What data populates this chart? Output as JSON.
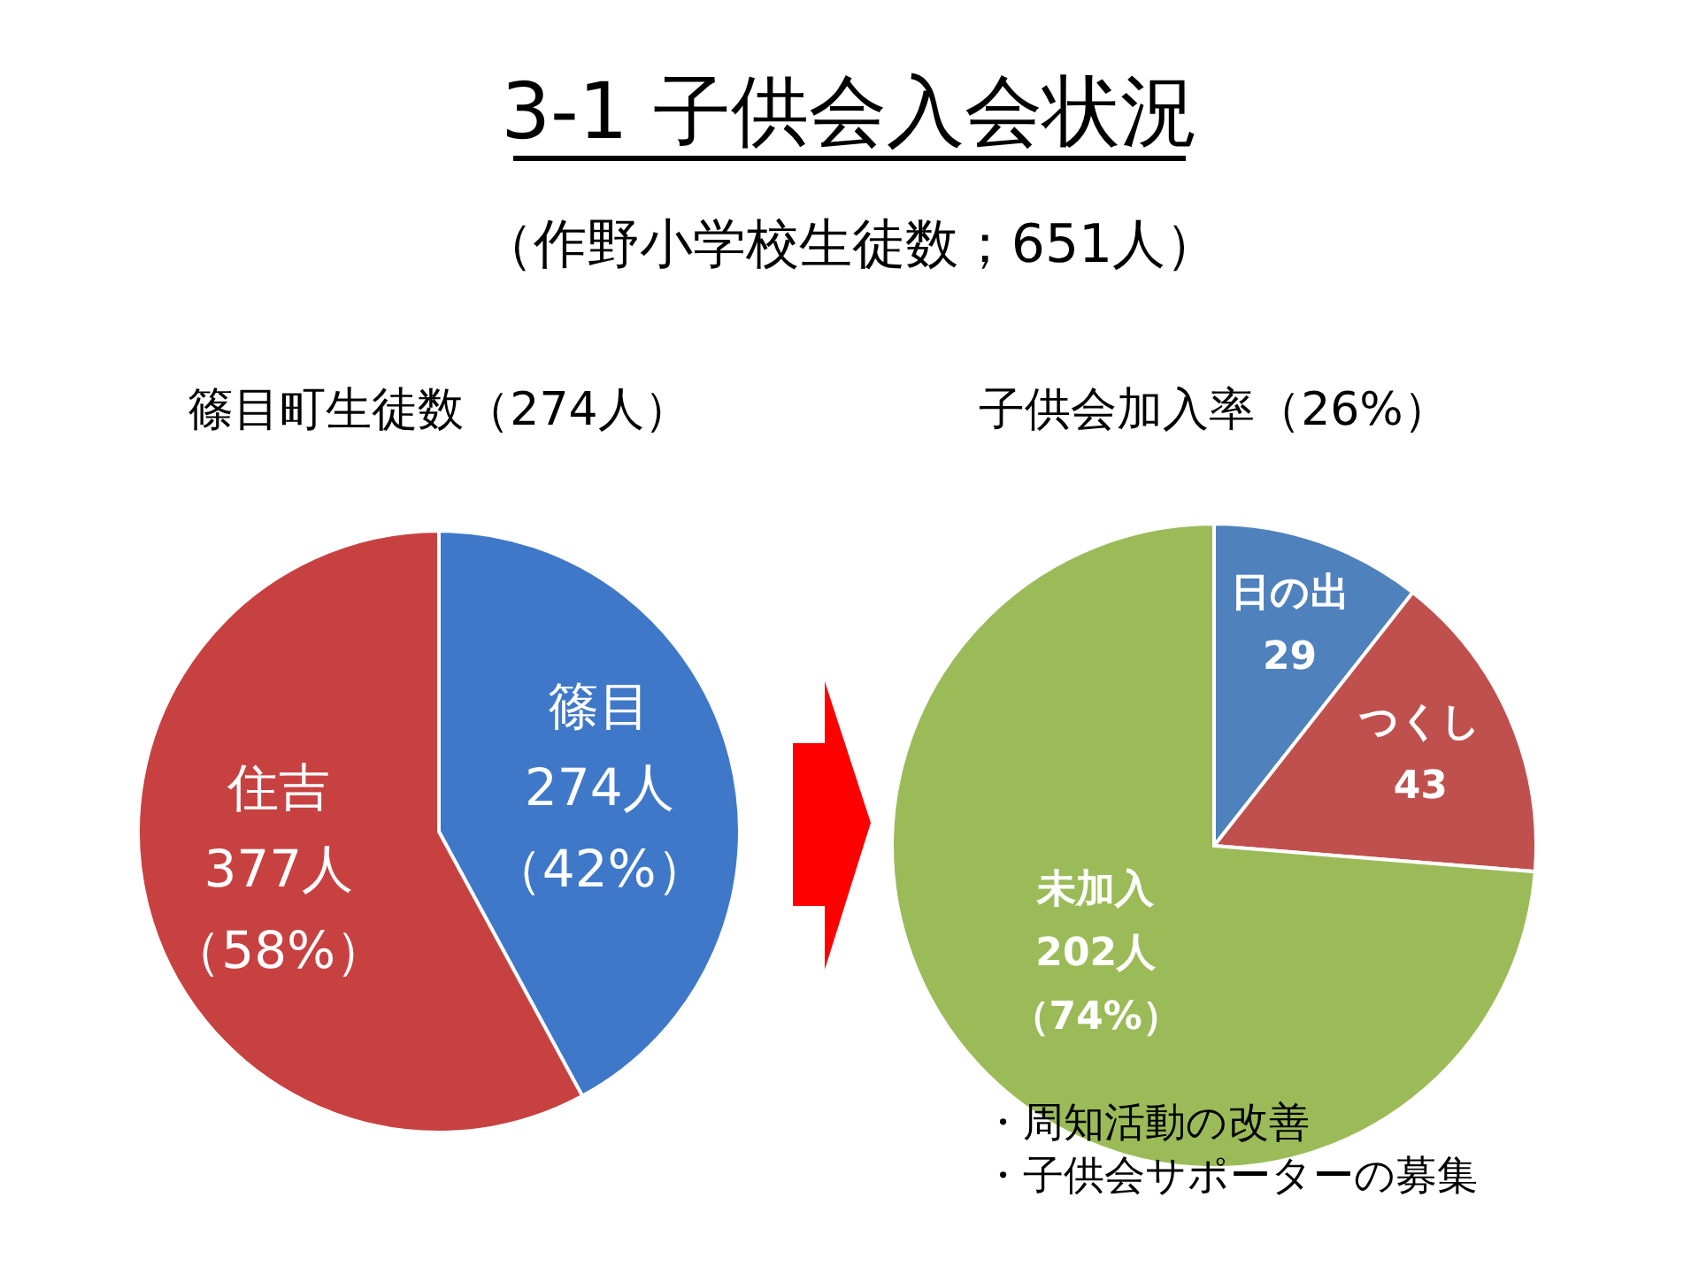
{
  "chart_data": [
    {
      "type": "other",
      "title": "3-1 子供会入会状況",
      "subtitle": "（作野小学校生徒数；651人）"
    },
    {
      "type": "pie",
      "title": "篠目町生徒数（274人）",
      "categories": [
        "篠目",
        "住吉"
      ],
      "values": [
        274,
        377
      ],
      "colors": [
        "#3f78c8",
        "#c84141"
      ],
      "value_labels": [
        "274人（42%）",
        "377人（58%）"
      ]
    },
    {
      "type": "pie",
      "title": "子供会加入率（26%）",
      "categories": [
        "日の出",
        "つくし",
        "未加入"
      ],
      "values": [
        29,
        43,
        202
      ],
      "colors": [
        "#4f81bd",
        "#c0504d",
        "#9bbb59"
      ],
      "value_labels": [
        "29",
        "43",
        "202人（74%）"
      ],
      "annotations": [
        "・周知活動の改善",
        "・子供会サポーターの募集"
      ]
    }
  ]
}
